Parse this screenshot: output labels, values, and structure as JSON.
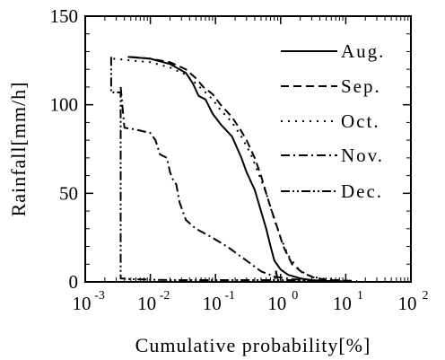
{
  "chart_data": {
    "type": "line",
    "title": "",
    "xlabel": "Cumulative probability[%]",
    "ylabel": "Rainfall[mm/h]",
    "xscale": "log",
    "xlim": [
      0.001,
      100
    ],
    "ylim": [
      0,
      150
    ],
    "grid": false,
    "legend_position": "top-right",
    "x_ticks": [
      {
        "base": "10",
        "exp": "-3",
        "value": 0.001
      },
      {
        "base": "10",
        "exp": "-2",
        "value": 0.01
      },
      {
        "base": "10",
        "exp": "-1",
        "value": 0.1
      },
      {
        "base": "10",
        "exp": "0",
        "value": 1
      },
      {
        "base": "10",
        "exp": "1",
        "value": 10
      },
      {
        "base": "10",
        "exp": "2",
        "value": 100
      }
    ],
    "y_ticks": [
      "0",
      "50",
      "100",
      "150"
    ],
    "series": [
      {
        "name": "Aug.",
        "dash": "",
        "points": [
          [
            0.0045,
            127
          ],
          [
            0.01,
            126
          ],
          [
            0.02,
            123
          ],
          [
            0.035,
            118
          ],
          [
            0.045,
            112
          ],
          [
            0.055,
            105
          ],
          [
            0.07,
            103
          ],
          [
            0.09,
            95
          ],
          [
            0.12,
            89
          ],
          [
            0.18,
            82
          ],
          [
            0.25,
            70
          ],
          [
            0.3,
            62
          ],
          [
            0.4,
            52
          ],
          [
            0.5,
            40
          ],
          [
            0.6,
            30
          ],
          [
            0.7,
            20
          ],
          [
            0.8,
            12
          ],
          [
            1.0,
            7
          ],
          [
            1.3,
            4
          ],
          [
            2.0,
            2
          ],
          [
            3.0,
            1
          ],
          [
            5,
            0.5
          ],
          [
            10,
            0.3
          ]
        ]
      },
      {
        "name": "Sep.",
        "dash": "9,5",
        "points": [
          [
            0.005,
            127
          ],
          [
            0.01,
            126
          ],
          [
            0.02,
            124
          ],
          [
            0.035,
            120
          ],
          [
            0.05,
            115
          ],
          [
            0.065,
            110
          ],
          [
            0.09,
            106
          ],
          [
            0.12,
            100
          ],
          [
            0.18,
            93
          ],
          [
            0.25,
            85
          ],
          [
            0.3,
            80
          ],
          [
            0.4,
            70
          ],
          [
            0.5,
            60
          ],
          [
            0.6,
            50
          ],
          [
            0.7,
            42
          ],
          [
            0.9,
            30
          ],
          [
            1.1,
            20
          ],
          [
            1.5,
            10
          ],
          [
            2.2,
            5
          ],
          [
            3.5,
            2
          ],
          [
            6,
            1
          ],
          [
            15,
            0.5
          ]
        ]
      },
      {
        "name": "Oct.",
        "dash": "2,6",
        "points": [
          [
            0.0027,
            126
          ],
          [
            0.005,
            125
          ],
          [
            0.01,
            124
          ],
          [
            0.02,
            121
          ],
          [
            0.035,
            117
          ],
          [
            0.05,
            112
          ],
          [
            0.07,
            107
          ],
          [
            0.09,
            103
          ],
          [
            0.12,
            97
          ],
          [
            0.18,
            90
          ],
          [
            0.25,
            82
          ],
          [
            0.35,
            72
          ],
          [
            0.45,
            62
          ],
          [
            0.6,
            50
          ],
          [
            0.8,
            35
          ],
          [
            1.0,
            25
          ],
          [
            1.3,
            15
          ],
          [
            1.8,
            8
          ],
          [
            2.5,
            4
          ],
          [
            4,
            2
          ],
          [
            8,
            1
          ]
        ]
      },
      {
        "name": "Nov.",
        "dash": "10,4,2,4",
        "points": [
          [
            0.0035,
            110
          ],
          [
            0.004,
            87
          ],
          [
            0.006,
            86
          ],
          [
            0.01,
            84
          ],
          [
            0.012,
            80
          ],
          [
            0.014,
            72
          ],
          [
            0.018,
            70
          ],
          [
            0.02,
            62
          ],
          [
            0.022,
            58
          ],
          [
            0.025,
            55
          ],
          [
            0.028,
            45
          ],
          [
            0.035,
            35
          ],
          [
            0.05,
            30
          ],
          [
            0.08,
            26
          ],
          [
            0.15,
            20
          ],
          [
            0.3,
            12
          ],
          [
            0.5,
            6
          ],
          [
            0.8,
            3
          ],
          [
            1.5,
            1.5
          ],
          [
            3,
            0.8
          ],
          [
            8,
            0.3
          ]
        ]
      },
      {
        "name": "Dec.",
        "dash": "10,3,2,3,2,3",
        "points": [
          [
            0.0025,
            127
          ],
          [
            0.0025,
            107
          ],
          [
            0.0035,
            107
          ],
          [
            0.0035,
            2
          ],
          [
            0.005,
            1.5
          ],
          [
            0.02,
            1
          ],
          [
            0.1,
            1
          ],
          [
            0.5,
            1
          ],
          [
            0.85,
            1
          ],
          [
            0.85,
            6
          ],
          [
            0.9,
            1
          ],
          [
            1.5,
            1
          ],
          [
            3,
            0.5
          ],
          [
            10,
            0.3
          ]
        ]
      }
    ]
  }
}
